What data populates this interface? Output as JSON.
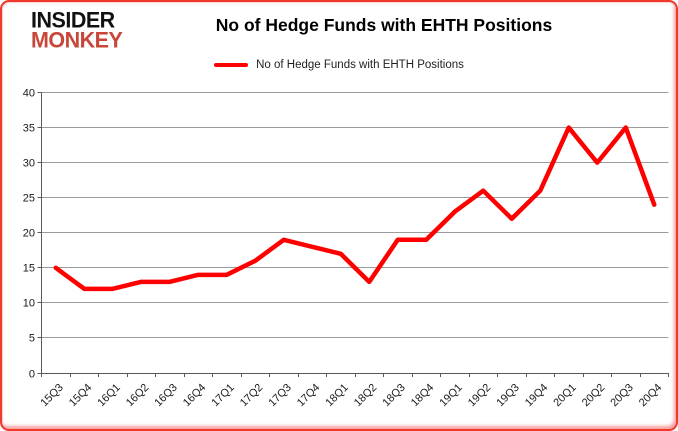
{
  "logo": {
    "line1": "INSIDER",
    "line2": "MONKEY"
  },
  "header": {
    "title": "No of Hedge Funds with EHTH Positions"
  },
  "legend": {
    "label": "No of Hedge Funds with EHTH Positions"
  },
  "colors": {
    "series_line": "#fe0000",
    "logo_accent": "#c7473a",
    "gridline": "#9b9b9b",
    "axis": "#595959",
    "tick_text": "#1a1a1a",
    "frame": "#ee392b"
  },
  "chart_data": {
    "type": "line",
    "title": "No of Hedge Funds with EHTH Positions",
    "categories": [
      "15Q3",
      "15Q4",
      "16Q1",
      "16Q2",
      "16Q3",
      "16Q4",
      "17Q1",
      "17Q2",
      "17Q3",
      "17Q4",
      "18Q1",
      "18Q2",
      "18Q3",
      "18Q4",
      "19Q1",
      "19Q2",
      "19Q3",
      "19Q4",
      "20Q1",
      "20Q2",
      "20Q3",
      "20Q4"
    ],
    "series": [
      {
        "name": "No of Hedge Funds with EHTH Positions",
        "color": "#fe0000",
        "values": [
          15,
          12,
          12,
          13,
          13,
          14,
          14,
          16,
          19,
          18,
          17,
          13,
          19,
          19,
          23,
          26,
          22,
          26,
          35,
          30,
          35,
          24
        ]
      }
    ],
    "xlabel": "",
    "ylabel": "",
    "ylim": [
      0,
      40
    ],
    "ytick_step": 5,
    "grid": true,
    "legend_position": "top-center",
    "x_label_rotation": -45
  }
}
